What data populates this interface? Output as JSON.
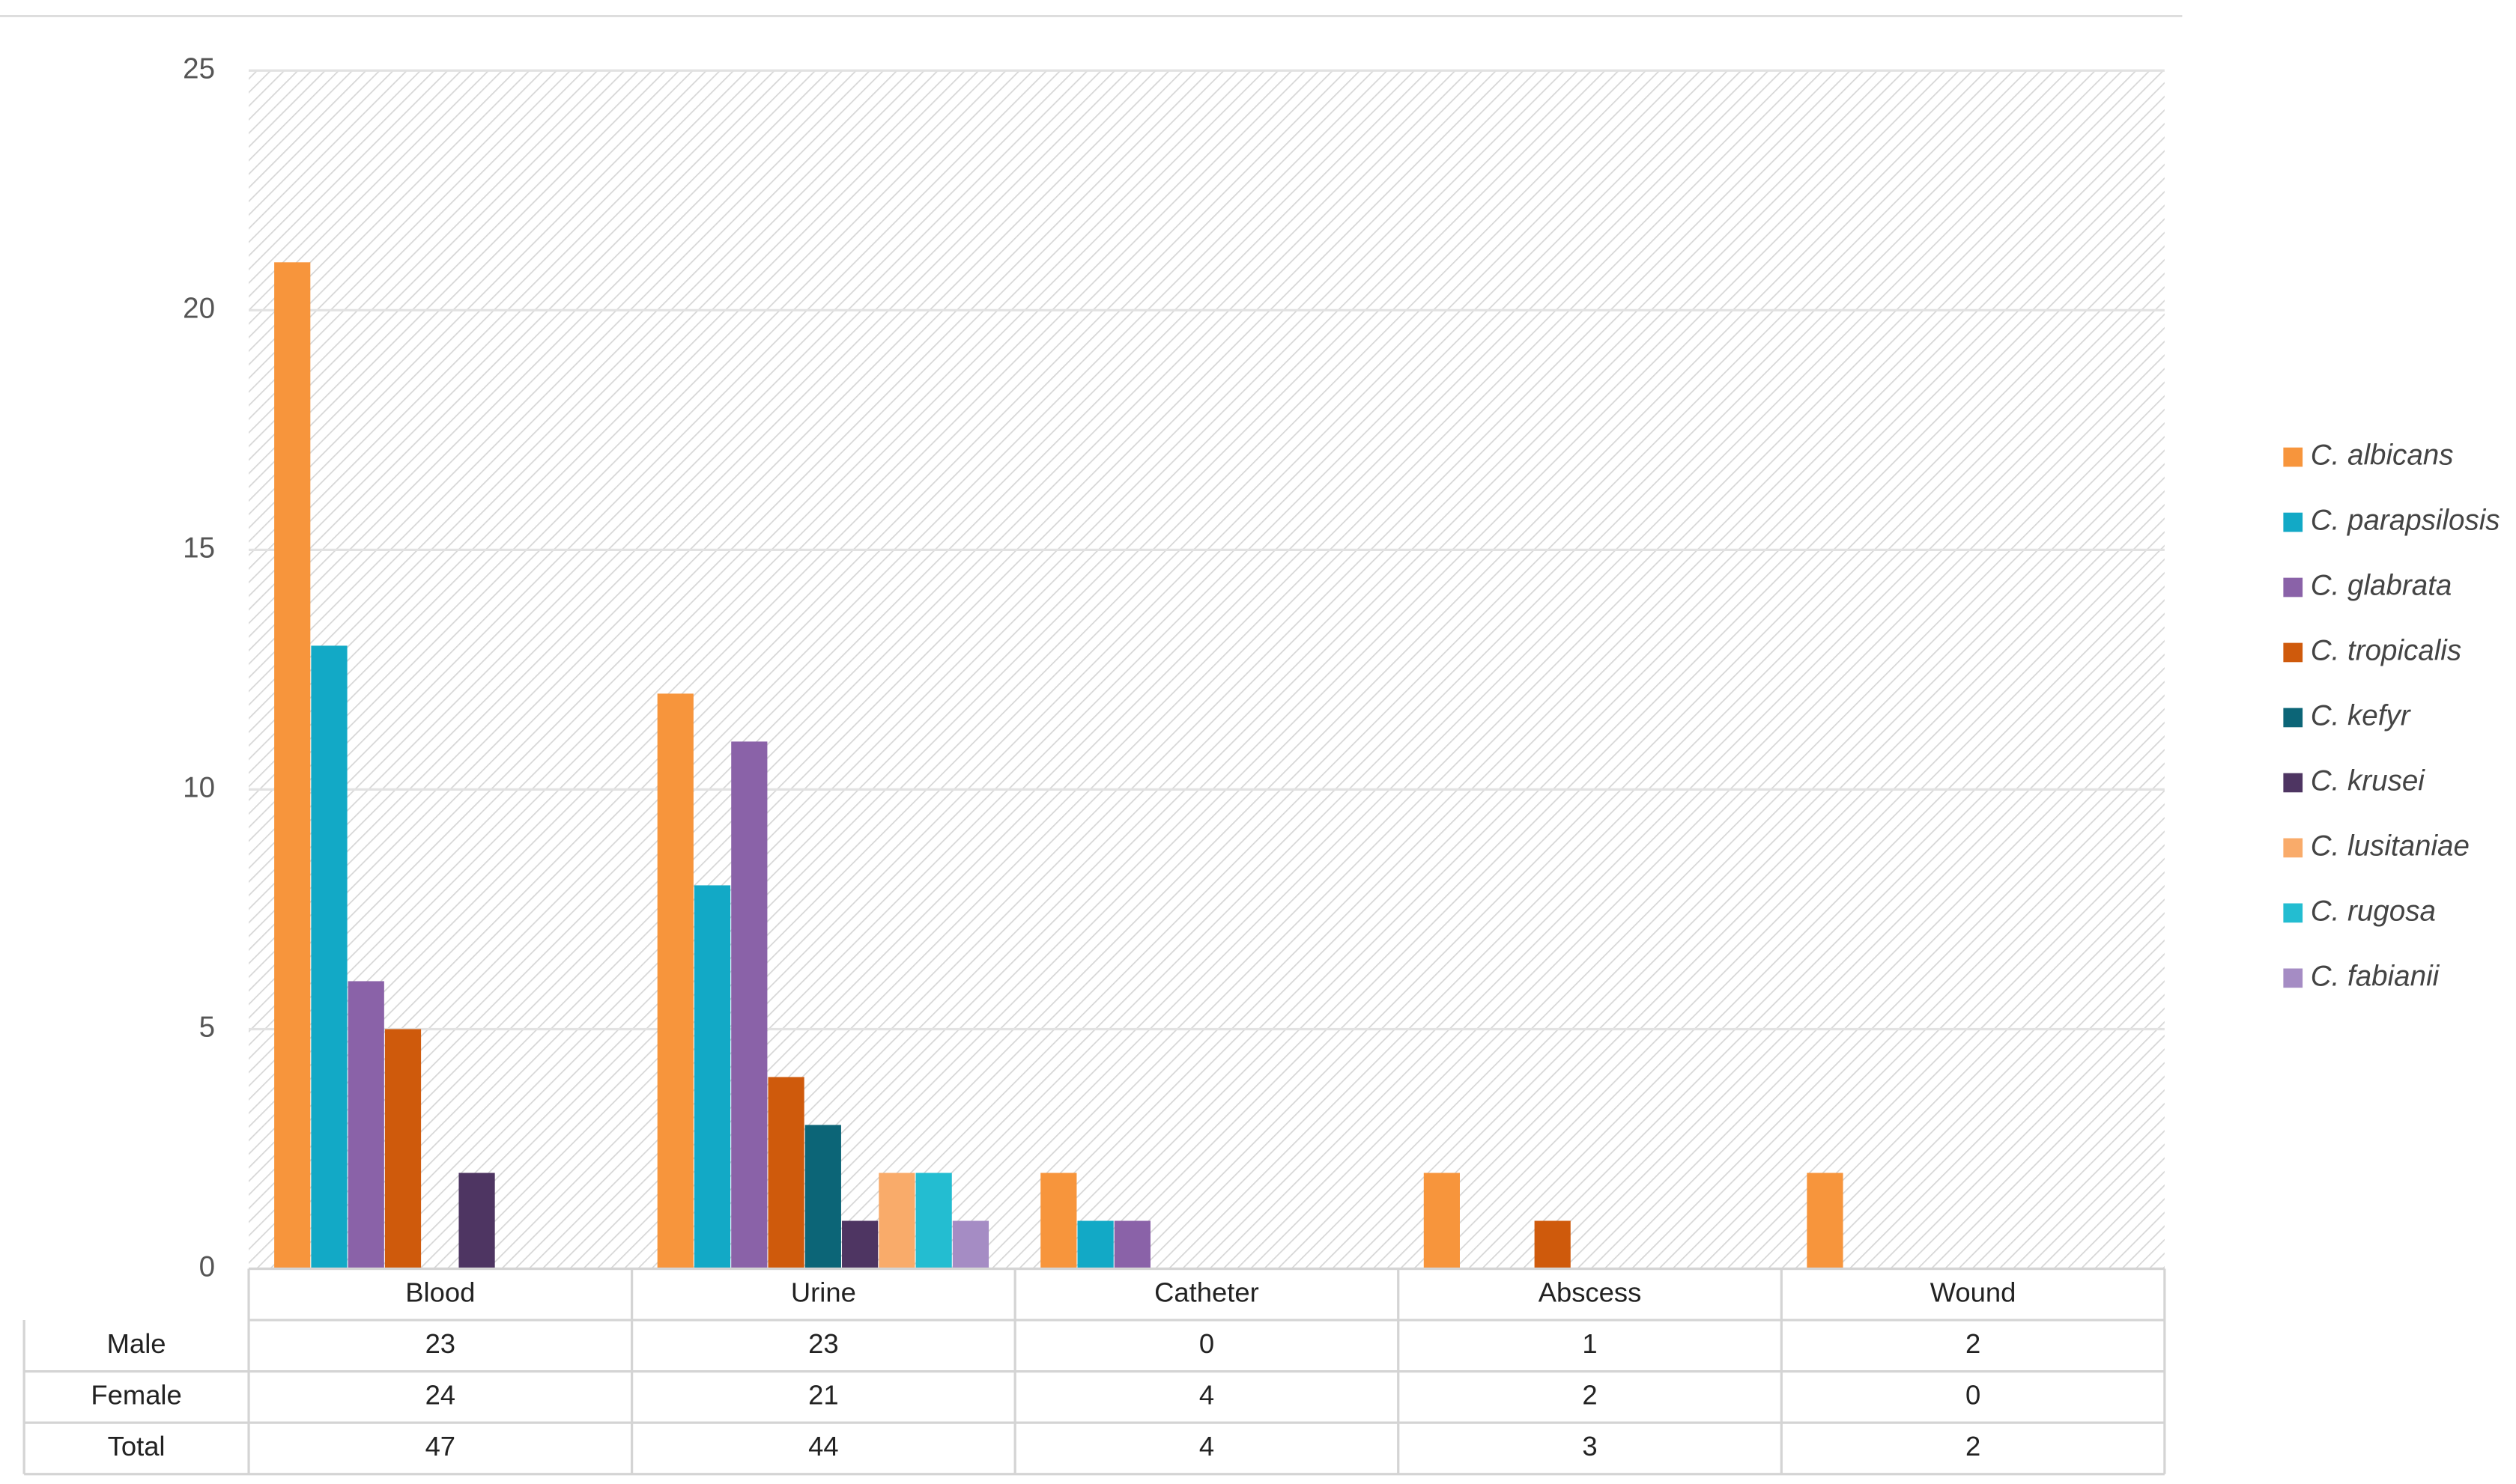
{
  "chart_data": {
    "type": "bar",
    "categories": [
      "Blood",
      "Urine",
      "Catheter",
      "Abscess",
      "Wound"
    ],
    "series": [
      {
        "name": "C. albicans",
        "color": "#f7953c",
        "values": [
          21,
          12,
          2,
          2,
          2
        ]
      },
      {
        "name": "C. parapsilosis",
        "color": "#12a9c6",
        "values": [
          13,
          8,
          1,
          0,
          0
        ]
      },
      {
        "name": "C. glabrata",
        "color": "#8a62a8",
        "values": [
          6,
          11,
          1,
          0,
          0
        ]
      },
      {
        "name": "C. tropicalis",
        "color": "#cf5a0c",
        "values": [
          5,
          4,
          0,
          1,
          0
        ]
      },
      {
        "name": "C. kefyr",
        "color": "#0c6577",
        "values": [
          0,
          3,
          0,
          0,
          0
        ]
      },
      {
        "name": "C. krusei",
        "color": "#4e3562",
        "values": [
          2,
          1,
          0,
          0,
          0
        ]
      },
      {
        "name": "C. lusitaniae",
        "color": "#f9ab6a",
        "values": [
          0,
          2,
          0,
          0,
          0
        ]
      },
      {
        "name": "C. rugosa",
        "color": "#23bdd1",
        "values": [
          0,
          2,
          0,
          0,
          0
        ]
      },
      {
        "name": "C. fabianii",
        "color": "#a58cc4",
        "values": [
          0,
          1,
          0,
          0,
          0
        ]
      }
    ],
    "ylim": [
      0,
      25
    ],
    "yticks": [
      0,
      5,
      10,
      15,
      20,
      25
    ],
    "grid": true,
    "table": [
      {
        "label": "Male",
        "values": [
          23,
          23,
          0,
          1,
          2
        ]
      },
      {
        "label": "Female",
        "values": [
          24,
          21,
          4,
          2,
          0
        ]
      },
      {
        "label": "Total",
        "values": [
          47,
          44,
          4,
          3,
          2
        ]
      }
    ]
  }
}
